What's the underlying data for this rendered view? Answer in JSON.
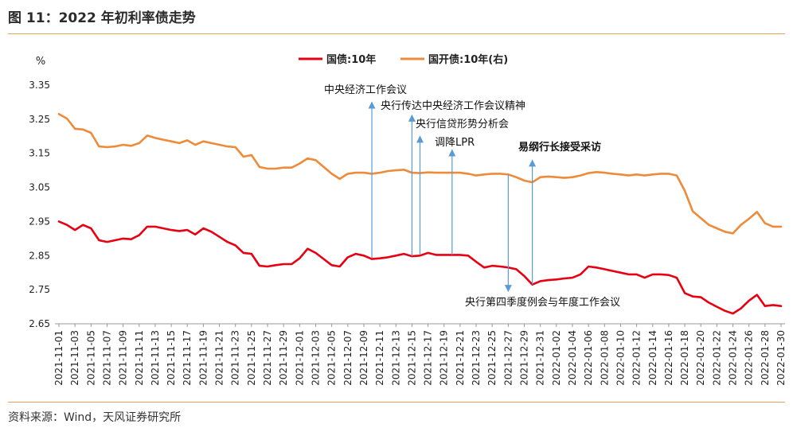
{
  "header": {
    "title": "图 11：2022 年初利率债走势"
  },
  "footer": {
    "source": "资料来源：Wind，天风证券研究所"
  },
  "chart_data": {
    "type": "line",
    "ylabel": "%",
    "ylim": [
      2.65,
      3.35
    ],
    "yticks": [
      "3.35",
      "3.25",
      "3.15",
      "3.05",
      "2.95",
      "2.85",
      "2.75",
      "2.65"
    ],
    "xlim": [
      "2021-11-01",
      "2022-01-30"
    ],
    "xticks": [
      "2021-11-01",
      "2021-11-03",
      "2021-11-05",
      "2021-11-07",
      "2021-11-09",
      "2021-11-11",
      "2021-11-13",
      "2021-11-15",
      "2021-11-17",
      "2021-11-19",
      "2021-11-21",
      "2021-11-23",
      "2021-11-25",
      "2021-11-27",
      "2021-11-29",
      "2021-12-01",
      "2021-12-03",
      "2021-12-05",
      "2021-12-07",
      "2021-12-09",
      "2021-12-11",
      "2021-12-13",
      "2021-12-15",
      "2021-12-17",
      "2021-12-19",
      "2021-12-21",
      "2021-12-23",
      "2021-12-25",
      "2021-12-27",
      "2021-12-29",
      "2021-12-31",
      "2022-01-02",
      "2022-01-04",
      "2022-01-06",
      "2022-01-08",
      "2022-01-10",
      "2022-01-12",
      "2022-01-14",
      "2022-01-16",
      "2022-01-18",
      "2022-01-20",
      "2022-01-22",
      "2022-01-24",
      "2022-01-26",
      "2022-01-28",
      "2022-01-30"
    ],
    "legend_position": "top-center",
    "series": [
      {
        "name": "国债:10年",
        "color": "#e60012",
        "points": [
          [
            "2021-11-01",
            2.95
          ],
          [
            "2021-11-02",
            2.94
          ],
          [
            "2021-11-03",
            2.925
          ],
          [
            "2021-11-04",
            2.94
          ],
          [
            "2021-11-05",
            2.93
          ],
          [
            "2021-11-06",
            2.895
          ],
          [
            "2021-11-07",
            2.89
          ],
          [
            "2021-11-08",
            2.895
          ],
          [
            "2021-11-09",
            2.9
          ],
          [
            "2021-11-10",
            2.898
          ],
          [
            "2021-11-11",
            2.91
          ],
          [
            "2021-11-12",
            2.935
          ],
          [
            "2021-11-13",
            2.935
          ],
          [
            "2021-11-14",
            2.93
          ],
          [
            "2021-11-15",
            2.925
          ],
          [
            "2021-11-16",
            2.922
          ],
          [
            "2021-11-17",
            2.925
          ],
          [
            "2021-11-18",
            2.912
          ],
          [
            "2021-11-19",
            2.93
          ],
          [
            "2021-11-20",
            2.92
          ],
          [
            "2021-11-21",
            2.905
          ],
          [
            "2021-11-22",
            2.89
          ],
          [
            "2021-11-23",
            2.88
          ],
          [
            "2021-11-24",
            2.858
          ],
          [
            "2021-11-25",
            2.855
          ],
          [
            "2021-11-26",
            2.82
          ],
          [
            "2021-11-27",
            2.818
          ],
          [
            "2021-11-28",
            2.822
          ],
          [
            "2021-11-29",
            2.825
          ],
          [
            "2021-11-30",
            2.825
          ],
          [
            "2021-12-01",
            2.842
          ],
          [
            "2021-12-02",
            2.87
          ],
          [
            "2021-12-03",
            2.858
          ],
          [
            "2021-12-04",
            2.84
          ],
          [
            "2021-12-05",
            2.822
          ],
          [
            "2021-12-06",
            2.818
          ],
          [
            "2021-12-07",
            2.845
          ],
          [
            "2021-12-08",
            2.855
          ],
          [
            "2021-12-09",
            2.85
          ],
          [
            "2021-12-10",
            2.84
          ],
          [
            "2021-12-11",
            2.842
          ],
          [
            "2021-12-12",
            2.845
          ],
          [
            "2021-12-13",
            2.85
          ],
          [
            "2021-12-14",
            2.855
          ],
          [
            "2021-12-15",
            2.848
          ],
          [
            "2021-12-16",
            2.85
          ],
          [
            "2021-12-17",
            2.858
          ],
          [
            "2021-12-18",
            2.852
          ],
          [
            "2021-12-19",
            2.852
          ],
          [
            "2021-12-20",
            2.852
          ],
          [
            "2021-12-21",
            2.852
          ],
          [
            "2021-12-22",
            2.85
          ],
          [
            "2021-12-23",
            2.832
          ],
          [
            "2021-12-24",
            2.815
          ],
          [
            "2021-12-25",
            2.82
          ],
          [
            "2021-12-26",
            2.818
          ],
          [
            "2021-12-27",
            2.815
          ],
          [
            "2021-12-28",
            2.81
          ],
          [
            "2021-12-29",
            2.79
          ],
          [
            "2021-12-30",
            2.765
          ],
          [
            "2021-12-31",
            2.775
          ],
          [
            "2022-01-01",
            2.778
          ],
          [
            "2022-01-02",
            2.78
          ],
          [
            "2022-01-03",
            2.783
          ],
          [
            "2022-01-04",
            2.785
          ],
          [
            "2022-01-05",
            2.795
          ],
          [
            "2022-01-06",
            2.818
          ],
          [
            "2022-01-07",
            2.815
          ],
          [
            "2022-01-08",
            2.81
          ],
          [
            "2022-01-09",
            2.805
          ],
          [
            "2022-01-10",
            2.8
          ],
          [
            "2022-01-11",
            2.795
          ],
          [
            "2022-01-12",
            2.795
          ],
          [
            "2022-01-13",
            2.785
          ],
          [
            "2022-01-14",
            2.795
          ],
          [
            "2022-01-15",
            2.795
          ],
          [
            "2022-01-16",
            2.793
          ],
          [
            "2022-01-17",
            2.785
          ],
          [
            "2022-01-18",
            2.74
          ],
          [
            "2022-01-19",
            2.73
          ],
          [
            "2022-01-20",
            2.728
          ],
          [
            "2022-01-21",
            2.712
          ],
          [
            "2022-01-22",
            2.7
          ],
          [
            "2022-01-23",
            2.688
          ],
          [
            "2022-01-24",
            2.68
          ],
          [
            "2022-01-25",
            2.695
          ],
          [
            "2022-01-26",
            2.718
          ],
          [
            "2022-01-27",
            2.735
          ],
          [
            "2022-01-28",
            2.702
          ],
          [
            "2022-01-29",
            2.705
          ],
          [
            "2022-01-30",
            2.702
          ]
        ]
      },
      {
        "name": "国开债:10年(右)",
        "color": "#ee8b3a",
        "points": [
          [
            "2021-11-01",
            3.265
          ],
          [
            "2021-11-02",
            3.252
          ],
          [
            "2021-11-03",
            3.222
          ],
          [
            "2021-11-04",
            3.22
          ],
          [
            "2021-11-05",
            3.21
          ],
          [
            "2021-11-06",
            3.17
          ],
          [
            "2021-11-07",
            3.168
          ],
          [
            "2021-11-08",
            3.17
          ],
          [
            "2021-11-09",
            3.175
          ],
          [
            "2021-11-10",
            3.172
          ],
          [
            "2021-11-11",
            3.18
          ],
          [
            "2021-11-12",
            3.202
          ],
          [
            "2021-11-13",
            3.195
          ],
          [
            "2021-11-14",
            3.19
          ],
          [
            "2021-11-15",
            3.185
          ],
          [
            "2021-11-16",
            3.18
          ],
          [
            "2021-11-17",
            3.188
          ],
          [
            "2021-11-18",
            3.175
          ],
          [
            "2021-11-19",
            3.185
          ],
          [
            "2021-11-20",
            3.18
          ],
          [
            "2021-11-21",
            3.175
          ],
          [
            "2021-11-22",
            3.17
          ],
          [
            "2021-11-23",
            3.168
          ],
          [
            "2021-11-24",
            3.14
          ],
          [
            "2021-11-25",
            3.145
          ],
          [
            "2021-11-26",
            3.11
          ],
          [
            "2021-11-27",
            3.105
          ],
          [
            "2021-11-28",
            3.105
          ],
          [
            "2021-11-29",
            3.108
          ],
          [
            "2021-11-30",
            3.108
          ],
          [
            "2021-12-01",
            3.12
          ],
          [
            "2021-12-02",
            3.135
          ],
          [
            "2021-12-03",
            3.13
          ],
          [
            "2021-12-04",
            3.11
          ],
          [
            "2021-12-05",
            3.09
          ],
          [
            "2021-12-06",
            3.075
          ],
          [
            "2021-12-07",
            3.09
          ],
          [
            "2021-12-08",
            3.093
          ],
          [
            "2021-12-09",
            3.093
          ],
          [
            "2021-12-10",
            3.09
          ],
          [
            "2021-12-11",
            3.093
          ],
          [
            "2021-12-12",
            3.098
          ],
          [
            "2021-12-13",
            3.1
          ],
          [
            "2021-12-14",
            3.102
          ],
          [
            "2021-12-15",
            3.093
          ],
          [
            "2021-12-16",
            3.092
          ],
          [
            "2021-12-17",
            3.094
          ],
          [
            "2021-12-18",
            3.093
          ],
          [
            "2021-12-19",
            3.093
          ],
          [
            "2021-12-20",
            3.093
          ],
          [
            "2021-12-21",
            3.093
          ],
          [
            "2021-12-22",
            3.09
          ],
          [
            "2021-12-23",
            3.085
          ],
          [
            "2021-12-24",
            3.088
          ],
          [
            "2021-12-25",
            3.09
          ],
          [
            "2021-12-26",
            3.09
          ],
          [
            "2021-12-27",
            3.088
          ],
          [
            "2021-12-28",
            3.08
          ],
          [
            "2021-12-29",
            3.07
          ],
          [
            "2021-12-30",
            3.065
          ],
          [
            "2021-12-31",
            3.08
          ],
          [
            "2022-01-01",
            3.082
          ],
          [
            "2022-01-02",
            3.08
          ],
          [
            "2022-01-03",
            3.078
          ],
          [
            "2022-01-04",
            3.08
          ],
          [
            "2022-01-05",
            3.085
          ],
          [
            "2022-01-06",
            3.092
          ],
          [
            "2022-01-07",
            3.095
          ],
          [
            "2022-01-08",
            3.093
          ],
          [
            "2022-01-09",
            3.09
          ],
          [
            "2022-01-10",
            3.088
          ],
          [
            "2022-01-11",
            3.085
          ],
          [
            "2022-01-12",
            3.088
          ],
          [
            "2022-01-13",
            3.085
          ],
          [
            "2022-01-14",
            3.088
          ],
          [
            "2022-01-15",
            3.09
          ],
          [
            "2022-01-16",
            3.09
          ],
          [
            "2022-01-17",
            3.085
          ],
          [
            "2022-01-18",
            3.04
          ],
          [
            "2022-01-19",
            2.98
          ],
          [
            "2022-01-20",
            2.96
          ],
          [
            "2022-01-21",
            2.94
          ],
          [
            "2022-01-22",
            2.93
          ],
          [
            "2022-01-23",
            2.92
          ],
          [
            "2022-01-24",
            2.915
          ],
          [
            "2022-01-25",
            2.94
          ],
          [
            "2022-01-26",
            2.958
          ],
          [
            "2022-01-27",
            2.978
          ],
          [
            "2022-01-28",
            2.945
          ],
          [
            "2022-01-29",
            2.935
          ],
          [
            "2022-01-30",
            2.935
          ]
        ]
      }
    ],
    "annotations": [
      {
        "text": "中央经济工作会议",
        "date": "2021-12-10",
        "from": 2.843,
        "to": 3.3,
        "bold": false
      },
      {
        "text": "央行传达中央经济工作会议精神",
        "date": "2021-12-15",
        "from": 2.848,
        "to": 3.262,
        "bold": false
      },
      {
        "text": "央行信贷形势分析会",
        "date": "2021-12-16",
        "from": 2.852,
        "to": 3.2,
        "bold": false
      },
      {
        "text": "调降LPR",
        "date": "2021-12-20",
        "from": 2.852,
        "to": 3.16,
        "bold": false
      },
      {
        "text": "易纲行长接受采访",
        "date": "2021-12-30",
        "from": 2.765,
        "to": 3.13,
        "bold": true
      },
      {
        "text": "央行第四季度例会与年度工作会议",
        "date": "2021-12-27",
        "from": 3.088,
        "to": 2.745,
        "bold": false
      }
    ]
  }
}
